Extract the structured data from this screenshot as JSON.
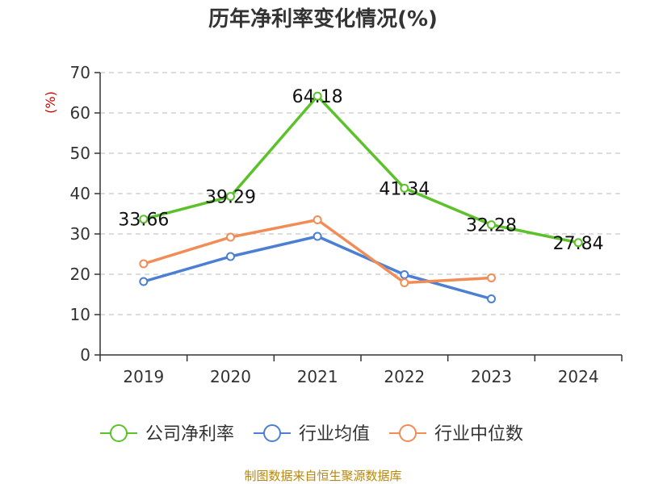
{
  "chart_data": {
    "type": "line",
    "title": "历年净利率变化情况(%)",
    "ylabel": "(%)",
    "xlabel": "",
    "categories": [
      "2019",
      "2020",
      "2021",
      "2022",
      "2023",
      "2024"
    ],
    "ylim": [
      0,
      70
    ],
    "yticks": [
      0,
      10,
      20,
      30,
      40,
      50,
      60,
      70
    ],
    "grid": true,
    "legend_position": "bottom",
    "series": [
      {
        "name": "公司净利率",
        "color": "#5cc12a",
        "values": [
          33.66,
          39.29,
          64.18,
          41.34,
          32.28,
          27.84
        ],
        "labels": [
          "33.66",
          "39.29",
          "64.18",
          "41.34",
          "32.28",
          "27.84"
        ]
      },
      {
        "name": "行业均值",
        "color": "#4a7fd4",
        "values": [
          18.2,
          24.4,
          29.4,
          19.9,
          13.9,
          null
        ]
      },
      {
        "name": "行业中位数",
        "color": "#f28c55",
        "values": [
          22.6,
          29.2,
          33.5,
          17.9,
          19.1,
          null
        ]
      }
    ]
  },
  "source": "制图数据来自恒生聚源数据库"
}
